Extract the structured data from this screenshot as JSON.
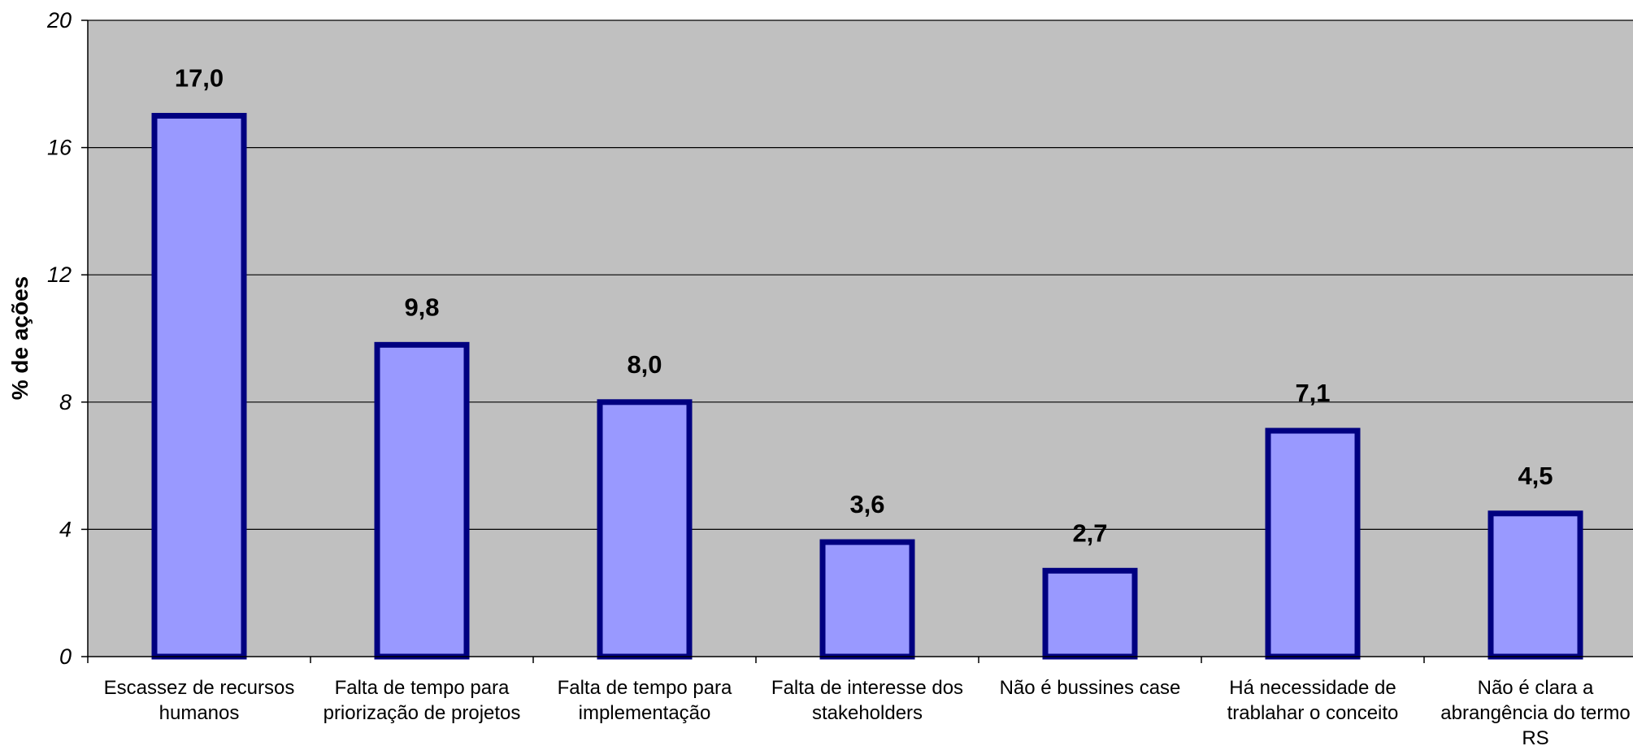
{
  "chart_data": {
    "type": "bar",
    "categories": [
      [
        "Escassez de recursos",
        "humanos"
      ],
      [
        "Falta de tempo para",
        "priorização de projetos"
      ],
      [
        "Falta de tempo para",
        "implementação"
      ],
      [
        "Falta de interesse dos",
        "stakeholders"
      ],
      [
        "Não é bussines case"
      ],
      [
        "Há necessidade de",
        "trablahar o conceito"
      ],
      [
        "Não é clara a",
        "abrangência do termo",
        "RS"
      ]
    ],
    "values": [
      17.0,
      9.8,
      8.0,
      3.6,
      2.7,
      7.1,
      4.5
    ],
    "data_labels": [
      "17,0",
      "9,8",
      "8,0",
      "3,6",
      "2,7",
      "7,1",
      "4,5"
    ],
    "ylabel": "% de ações",
    "ylim": [
      0,
      20
    ],
    "yticks": [
      0,
      4,
      8,
      12,
      16,
      20
    ],
    "grid": true,
    "colors": {
      "plot_background": "#c0c0c0",
      "bar_fill": "#9999ff",
      "bar_stroke": "#000080",
      "gridline": "#000000"
    }
  }
}
